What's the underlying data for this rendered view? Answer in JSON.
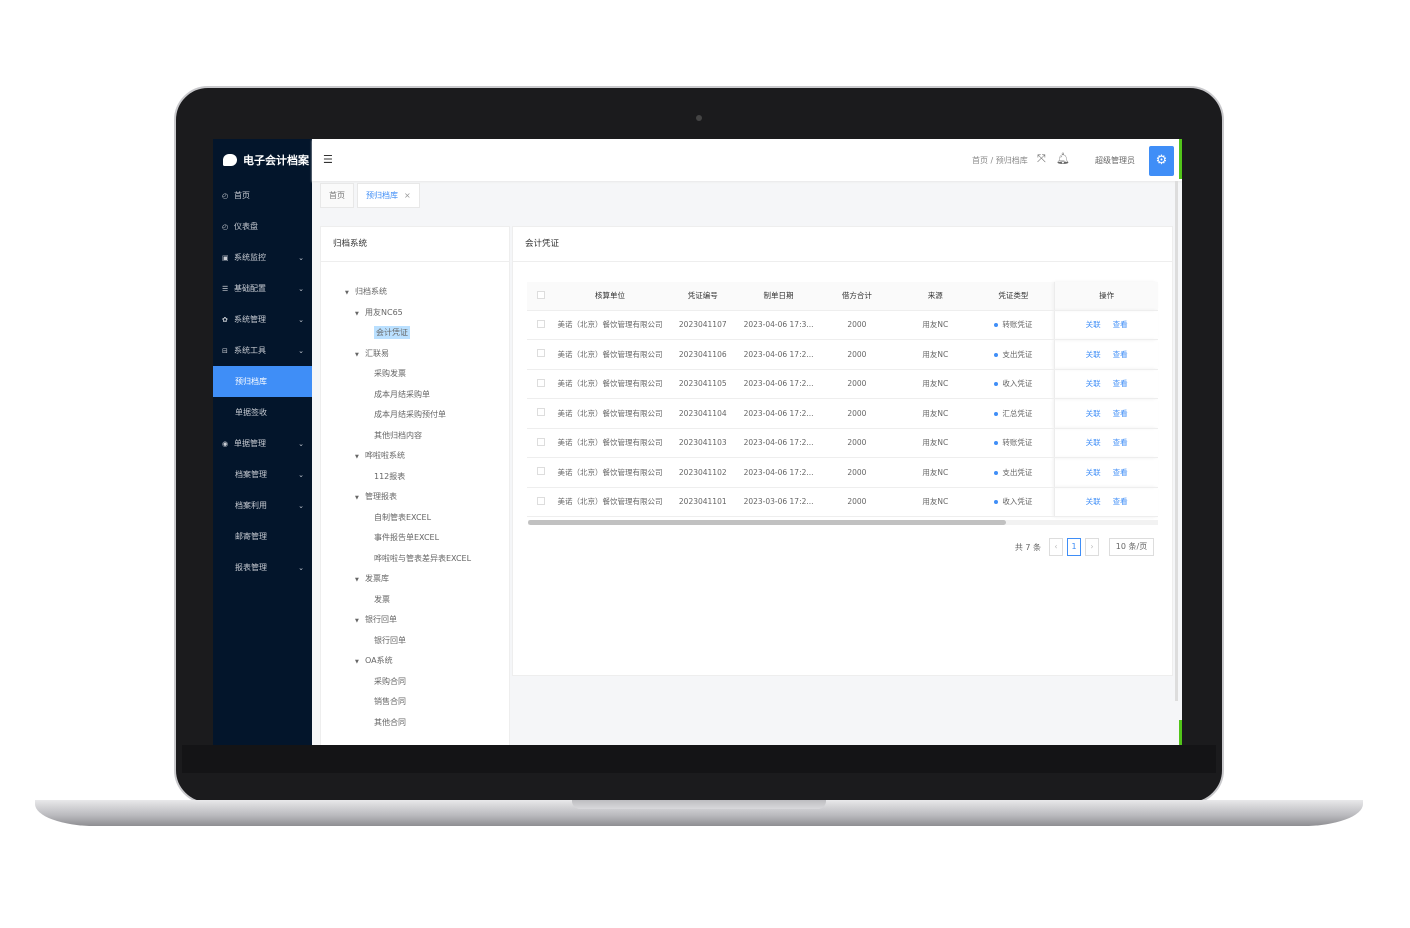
{
  "app": {
    "title": "电子会计档案"
  },
  "sidebar": {
    "items": [
      {
        "label": "首页",
        "icon": "dashboard-icon",
        "chevron": false,
        "sub": false
      },
      {
        "label": "仪表盘",
        "icon": "dashboard-icon",
        "chevron": false,
        "sub": false
      },
      {
        "label": "系统监控",
        "icon": "monitor-icon",
        "chevron": true,
        "sub": false
      },
      {
        "label": "基础配置",
        "icon": "sliders-icon",
        "chevron": true,
        "sub": false
      },
      {
        "label": "系统管理",
        "icon": "gear-icon",
        "chevron": true,
        "sub": false
      },
      {
        "label": "系统工具",
        "icon": "toolbox-icon",
        "chevron": true,
        "sub": false
      },
      {
        "label": "预归档库",
        "icon": "",
        "chevron": false,
        "sub": true,
        "active": true
      },
      {
        "label": "单据签收",
        "icon": "",
        "chevron": false,
        "sub": true
      },
      {
        "label": "单据管理",
        "icon": "radio-icon",
        "chevron": true,
        "sub": false
      },
      {
        "label": "档案管理",
        "icon": "",
        "chevron": true,
        "sub": true
      },
      {
        "label": "档案利用",
        "icon": "",
        "chevron": true,
        "sub": true
      },
      {
        "label": "邮寄管理",
        "icon": "",
        "chevron": false,
        "sub": true
      },
      {
        "label": "报表管理",
        "icon": "",
        "chevron": true,
        "sub": true
      }
    ]
  },
  "header": {
    "breadcrumb": [
      "首页",
      "预归档库"
    ],
    "separator": "/",
    "user": "超级管理员"
  },
  "tabs": [
    {
      "label": "首页",
      "active": false
    },
    {
      "label": "预归档库",
      "active": true,
      "close": "×"
    }
  ],
  "left_panel": {
    "title": "归档系统",
    "tree": [
      {
        "label": "归档系统",
        "level": 0,
        "arrow": true
      },
      {
        "label": "用友NC65",
        "level": 1,
        "arrow": true
      },
      {
        "label": "会计凭证",
        "level": 2,
        "selected": true
      },
      {
        "label": "汇联易",
        "level": 1,
        "arrow": true
      },
      {
        "label": "采购发票",
        "level": 2
      },
      {
        "label": "成本月结采购单",
        "level": 2
      },
      {
        "label": "成本月结采购预付单",
        "level": 2
      },
      {
        "label": "其他归档内容",
        "level": 2
      },
      {
        "label": "哗啦啦系统",
        "level": 1,
        "arrow": true
      },
      {
        "label": "112报表",
        "level": 2
      },
      {
        "label": "管理报表",
        "level": 1,
        "arrow": true
      },
      {
        "label": "自制管表EXCEL",
        "level": 2
      },
      {
        "label": "事件报告单EXCEL",
        "level": 2
      },
      {
        "label": "哗啦啦与管表差异表EXCEL",
        "level": 2
      },
      {
        "label": "发票库",
        "level": 1,
        "arrow": true
      },
      {
        "label": "发票",
        "level": 2
      },
      {
        "label": "银行回单",
        "level": 1,
        "arrow": true
      },
      {
        "label": "银行回单",
        "level": 2
      },
      {
        "label": "OA系统",
        "level": 1,
        "arrow": true
      },
      {
        "label": "采购合同",
        "level": 2
      },
      {
        "label": "销售合同",
        "level": 2
      },
      {
        "label": "其他合同",
        "level": 2
      }
    ]
  },
  "right_panel": {
    "title": "会计凭证",
    "columns": [
      "核算单位",
      "凭证编号",
      "制单日期",
      "借方合计",
      "来源",
      "凭证类型",
      "操作"
    ],
    "rows": [
      [
        "美诺（北京）餐饮管理有限公司",
        "2023041107",
        "2023-04-06 17:3...",
        "2000",
        "用友NC",
        "转账凭证"
      ],
      [
        "美诺（北京）餐饮管理有限公司",
        "2023041106",
        "2023-04-06 17:2...",
        "2000",
        "用友NC",
        "支出凭证"
      ],
      [
        "美诺（北京）餐饮管理有限公司",
        "2023041105",
        "2023-04-06 17:2...",
        "2000",
        "用友NC",
        "收入凭证"
      ],
      [
        "美诺（北京）餐饮管理有限公司",
        "2023041104",
        "2023-04-06 17:2...",
        "2000",
        "用友NC",
        "汇总凭证"
      ],
      [
        "美诺（北京）餐饮管理有限公司",
        "2023041103",
        "2023-04-06 17:2...",
        "2000",
        "用友NC",
        "转账凭证"
      ],
      [
        "美诺（北京）餐饮管理有限公司",
        "2023041102",
        "2023-04-06 17:2...",
        "2000",
        "用友NC",
        "支出凭证"
      ],
      [
        "美诺（北京）餐饮管理有限公司",
        "2023041101",
        "2023-03-06 17:2...",
        "2000",
        "用友NC",
        "收入凭证"
      ]
    ],
    "actions": [
      "关联",
      "查看"
    ],
    "pagination": {
      "total": "共 7 条",
      "current": "1",
      "page_size": "10 条/页"
    }
  },
  "colors": {
    "accent": "#3f8ef7",
    "sidebar": "#03152b"
  }
}
